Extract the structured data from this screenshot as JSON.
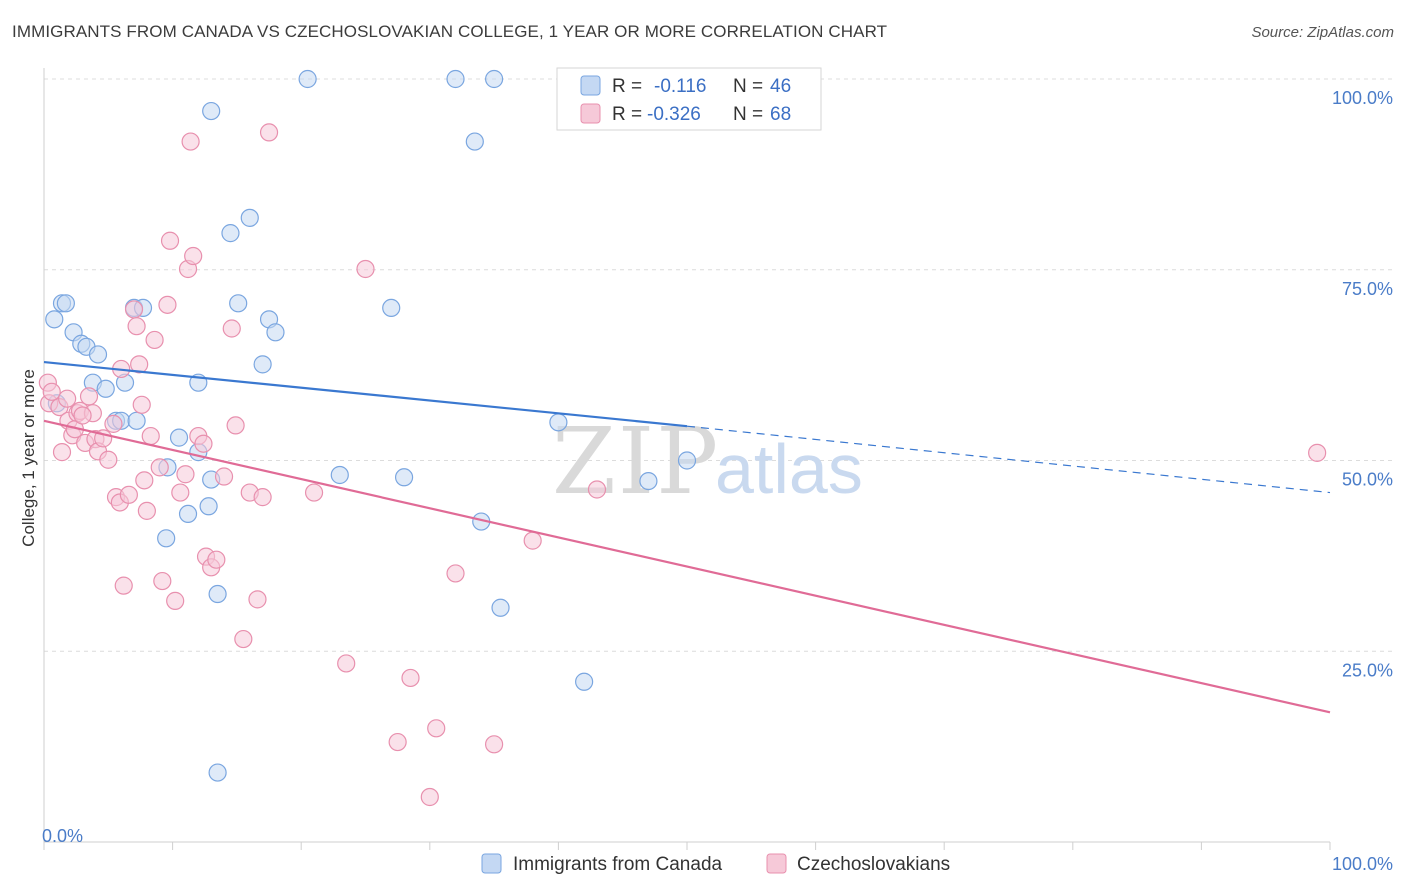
{
  "title": "IMMIGRANTS FROM CANADA VS CZECHOSLOVAKIAN COLLEGE, 1 YEAR OR MORE CORRELATION CHART",
  "source": "Source: ZipAtlas.com",
  "watermark": {
    "part1": "ZIP",
    "part2": "atlas"
  },
  "colors": {
    "blue": "#7aa6e0",
    "blue_fill": "#c4d8f3",
    "blue_line": "#3a78d0",
    "pink": "#e890ae",
    "pink_fill": "#f6c9d8",
    "pink_line": "#e06b96"
  },
  "legend": {
    "rows": [
      {
        "r_label": "R =",
        "r_value": "-0.116",
        "n_label": "N =",
        "n_value": "46"
      },
      {
        "r_label": "R =",
        "r_value": "-0.326",
        "n_label": "N =",
        "n_value": "68"
      }
    ]
  },
  "bottom_legend": [
    "Immigrants from Canada",
    "Czechoslovakians"
  ],
  "chart_data": {
    "type": "scatter",
    "xlabel": "",
    "ylabel": "College, 1 year or more",
    "xlim": [
      0,
      100
    ],
    "ylim": [
      0,
      100
    ],
    "x_tick_labels": [
      "0.0%",
      "100.0%"
    ],
    "y_ticks": [
      25,
      50,
      75,
      100
    ],
    "y_tick_labels": [
      "25.0%",
      "50.0%",
      "75.0%",
      "100.0%"
    ],
    "grid": "horizontal dashed",
    "legend_position": "top-center",
    "series": [
      {
        "name": "Immigrants from Canada",
        "points": [
          [
            0.8,
            68.5
          ],
          [
            1.4,
            70.6
          ],
          [
            1.7,
            70.6
          ],
          [
            1.0,
            57.5
          ],
          [
            2.3,
            66.8
          ],
          [
            2.9,
            65.3
          ],
          [
            3.3,
            64.9
          ],
          [
            4.2,
            63.9
          ],
          [
            3.8,
            60.2
          ],
          [
            4.8,
            59.4
          ],
          [
            6.3,
            60.2
          ],
          [
            5.6,
            55.2
          ],
          [
            6.0,
            55.2
          ],
          [
            7.2,
            55.2
          ],
          [
            7.0,
            70.0
          ],
          [
            7.7,
            70.0
          ],
          [
            9.6,
            49.1
          ],
          [
            9.5,
            39.8
          ],
          [
            10.5,
            53.0
          ],
          [
            11.2,
            43.0
          ],
          [
            12.0,
            51.1
          ],
          [
            12.0,
            60.2
          ],
          [
            12.8,
            44.0
          ],
          [
            13.0,
            47.5
          ],
          [
            13.0,
            95.8
          ],
          [
            13.5,
            32.5
          ],
          [
            13.5,
            9.1
          ],
          [
            14.5,
            79.8
          ],
          [
            15.1,
            70.6
          ],
          [
            16.0,
            81.8
          ],
          [
            17.0,
            62.6
          ],
          [
            17.5,
            68.5
          ],
          [
            18.0,
            66.8
          ],
          [
            20.5,
            100.0
          ],
          [
            23.0,
            48.1
          ],
          [
            27.0,
            70.0
          ],
          [
            28.0,
            47.8
          ],
          [
            32.0,
            100.0
          ],
          [
            33.5,
            91.8
          ],
          [
            34.0,
            42.0
          ],
          [
            35.0,
            100.0
          ],
          [
            35.5,
            30.7
          ],
          [
            40.0,
            55.0
          ],
          [
            42.0,
            21.0
          ],
          [
            47.0,
            47.3
          ],
          [
            50.0,
            50.0
          ]
        ],
        "trend": {
          "x": [
            0,
            50
          ],
          "y": [
            62.9,
            54.5
          ],
          "dashed_extension": {
            "x": [
              50,
              100
            ],
            "y": [
              54.5,
              45.8
            ]
          }
        }
      },
      {
        "name": "Czechoslovakians",
        "points": [
          [
            0.3,
            60.2
          ],
          [
            0.4,
            57.5
          ],
          [
            1.2,
            57.0
          ],
          [
            1.4,
            51.1
          ],
          [
            1.9,
            55.2
          ],
          [
            2.2,
            53.3
          ],
          [
            2.6,
            56.2
          ],
          [
            2.8,
            56.5
          ],
          [
            3.2,
            52.3
          ],
          [
            3.5,
            58.4
          ],
          [
            3.8,
            56.2
          ],
          [
            4.0,
            52.8
          ],
          [
            4.2,
            51.2
          ],
          [
            4.6,
            52.9
          ],
          [
            5.0,
            50.1
          ],
          [
            5.4,
            54.8
          ],
          [
            5.6,
            45.2
          ],
          [
            5.9,
            44.5
          ],
          [
            6.0,
            62.0
          ],
          [
            6.2,
            33.6
          ],
          [
            6.6,
            45.5
          ],
          [
            7.0,
            69.8
          ],
          [
            7.2,
            67.6
          ],
          [
            7.4,
            62.6
          ],
          [
            7.6,
            57.3
          ],
          [
            7.8,
            47.4
          ],
          [
            8.0,
            43.4
          ],
          [
            8.3,
            53.2
          ],
          [
            8.6,
            65.8
          ],
          [
            9.0,
            49.1
          ],
          [
            9.2,
            34.2
          ],
          [
            9.6,
            70.4
          ],
          [
            9.8,
            78.8
          ],
          [
            10.2,
            31.6
          ],
          [
            10.6,
            45.8
          ],
          [
            11.0,
            48.2
          ],
          [
            11.2,
            75.1
          ],
          [
            11.4,
            91.8
          ],
          [
            11.6,
            76.8
          ],
          [
            12.0,
            53.2
          ],
          [
            12.4,
            52.2
          ],
          [
            12.6,
            37.4
          ],
          [
            13.0,
            36.0
          ],
          [
            13.4,
            37.0
          ],
          [
            14.0,
            47.9
          ],
          [
            14.6,
            67.3
          ],
          [
            14.9,
            54.6
          ],
          [
            15.5,
            26.6
          ],
          [
            16.0,
            45.8
          ],
          [
            16.6,
            31.8
          ],
          [
            17.0,
            45.2
          ],
          [
            17.5,
            93.0
          ],
          [
            21.0,
            45.8
          ],
          [
            23.5,
            23.4
          ],
          [
            25.0,
            75.1
          ],
          [
            27.5,
            13.1
          ],
          [
            28.5,
            21.5
          ],
          [
            30.0,
            5.9
          ],
          [
            30.5,
            14.9
          ],
          [
            32.0,
            35.2
          ],
          [
            35.0,
            12.8
          ],
          [
            38.0,
            39.5
          ],
          [
            43.0,
            46.2
          ],
          [
            99.0,
            51.0
          ],
          [
            0.6,
            59.0
          ],
          [
            1.8,
            58.1
          ],
          [
            2.4,
            54.1
          ],
          [
            3.0,
            55.9
          ]
        ],
        "trend": {
          "x": [
            0,
            100
          ],
          "y": [
            55.2,
            17.0
          ]
        }
      }
    ]
  }
}
